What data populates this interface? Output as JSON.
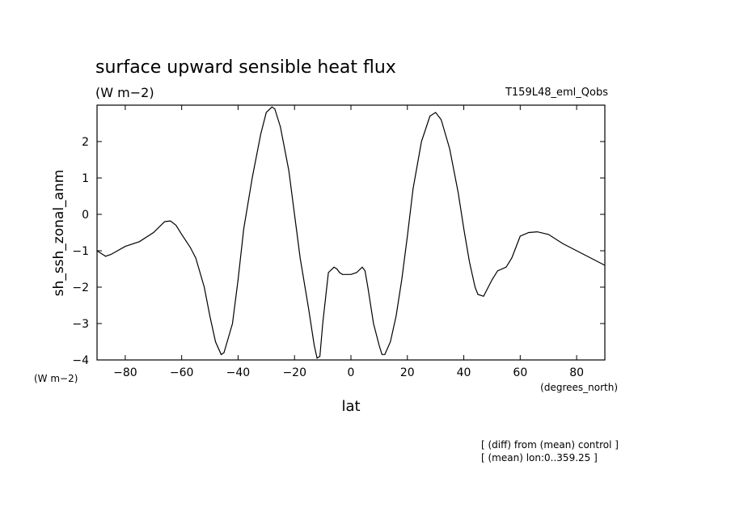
{
  "chart_data": {
    "type": "line",
    "title": "surface upward sensible heat flux",
    "units": "(W m−2)",
    "run_label": "T159L48_eml_Qobs",
    "ylabel": "sh_ssh_zonal_anm",
    "yunits": "(W m−2)",
    "xlabel": "lat",
    "xunits": "(degrees_north)",
    "xlim": [
      -90,
      90
    ],
    "ylim": [
      -4,
      3
    ],
    "xticks": [
      -80,
      -60,
      -40,
      -20,
      0,
      20,
      40,
      60,
      80
    ],
    "yticks": [
      -4,
      -3,
      -2,
      -1,
      0,
      1,
      2
    ],
    "footnotes": [
      "[ (diff) from (mean) control ]",
      "[ (mean) lon:0..359.25 ]"
    ],
    "series": [
      {
        "x": [
          -90,
          -87,
          -85,
          -80,
          -75,
          -70,
          -66,
          -64,
          -62,
          -60,
          -57,
          -55,
          -52,
          -50,
          -48,
          -46,
          -45,
          -42,
          -40,
          -38,
          -35,
          -32,
          -30,
          -28,
          -27,
          -25,
          -22,
          -20,
          -18,
          -15,
          -13,
          -12,
          -11,
          -10,
          -8,
          -6,
          -5,
          -4,
          -3,
          -2,
          0,
          2,
          4,
          5,
          6,
          8,
          10,
          11,
          12,
          14,
          16,
          18,
          20,
          22,
          25,
          28,
          30,
          32,
          35,
          38,
          40,
          42,
          44,
          45,
          47,
          48,
          50,
          52,
          55,
          57,
          60,
          63,
          66,
          70,
          75,
          80,
          85,
          90
        ],
        "y": [
          -1.0,
          -1.15,
          -1.1,
          -0.88,
          -0.75,
          -0.5,
          -0.2,
          -0.18,
          -0.3,
          -0.55,
          -0.9,
          -1.2,
          -2.0,
          -2.8,
          -3.5,
          -3.85,
          -3.8,
          -3.0,
          -1.8,
          -0.4,
          1.0,
          2.2,
          2.8,
          2.95,
          2.9,
          2.4,
          1.2,
          0.0,
          -1.2,
          -2.6,
          -3.6,
          -3.95,
          -3.9,
          -3.0,
          -1.6,
          -1.45,
          -1.5,
          -1.6,
          -1.65,
          -1.65,
          -1.65,
          -1.6,
          -1.45,
          -1.55,
          -2.0,
          -3.0,
          -3.6,
          -3.85,
          -3.85,
          -3.5,
          -2.8,
          -1.8,
          -0.6,
          0.7,
          2.0,
          2.7,
          2.8,
          2.6,
          1.8,
          0.6,
          -0.4,
          -1.3,
          -2.0,
          -2.2,
          -2.25,
          -2.1,
          -1.8,
          -1.55,
          -1.45,
          -1.2,
          -0.6,
          -0.5,
          -0.48,
          -0.55,
          -0.8,
          -1.0,
          -1.2,
          -1.4
        ]
      }
    ]
  }
}
